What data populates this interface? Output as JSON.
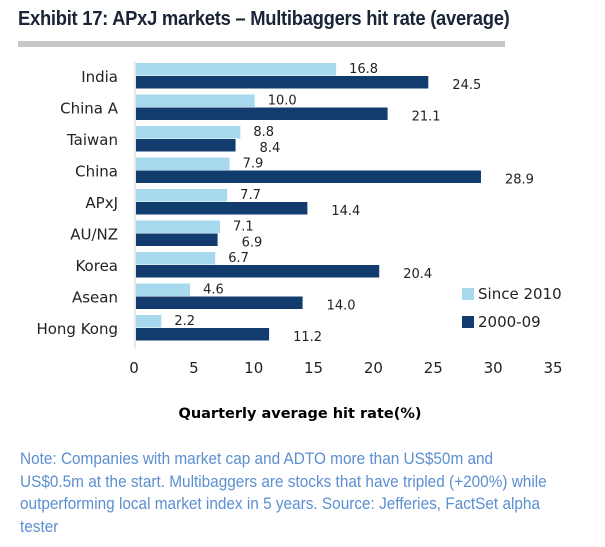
{
  "header": {
    "title": "Exhibit 17: APxJ markets – Multibaggers hit rate (average)"
  },
  "colors": {
    "since_2010": "#a8d8ee",
    "y2000_09": "#123c6e",
    "title_rule": "#c8c8c8",
    "note_text": "#5b8fd0"
  },
  "chart_data": {
    "type": "bar",
    "orientation": "horizontal",
    "title": "Exhibit 17: APxJ markets – Multibaggers hit rate (average)",
    "xlabel": "Quarterly average hit rate(%)",
    "ylabel": "",
    "categories": [
      "India",
      "China A",
      "Taiwan",
      "China",
      "APxJ",
      "AU/NZ",
      "Korea",
      "Asean",
      "Hong Kong"
    ],
    "series": [
      {
        "name": "Since 2010",
        "color": "#a8d8ee",
        "values": [
          16.8,
          10.0,
          8.8,
          7.9,
          7.7,
          7.1,
          6.7,
          4.6,
          2.2
        ],
        "labels": [
          "16.8",
          "10.0",
          "8.8",
          "7.9",
          "7.7",
          "7.1",
          "6.7",
          "4.6",
          "2.2"
        ]
      },
      {
        "name": "2000-09",
        "color": "#123c6e",
        "values": [
          24.5,
          21.1,
          8.4,
          28.9,
          14.4,
          6.9,
          20.4,
          14.0,
          11.2
        ],
        "labels": [
          "24.5",
          "21.1",
          "8.4",
          "28.9",
          "14.4",
          "6.9",
          "20.4",
          "14.0",
          "11.2"
        ]
      }
    ],
    "xlim": [
      0,
      35
    ],
    "xticks": [
      0,
      5,
      10,
      15,
      20,
      25,
      30,
      35
    ],
    "grid": false,
    "legend_position": "bottom-right",
    "data_labels": true
  },
  "footer": {
    "note": "Note: Companies with market cap and ADTO more than US$50m and US$0.5m at the start. Multibaggers are stocks that have tripled (+200%) while outperforming local market index in 5 years. Source: Jefferies, FactSet alpha tester"
  }
}
